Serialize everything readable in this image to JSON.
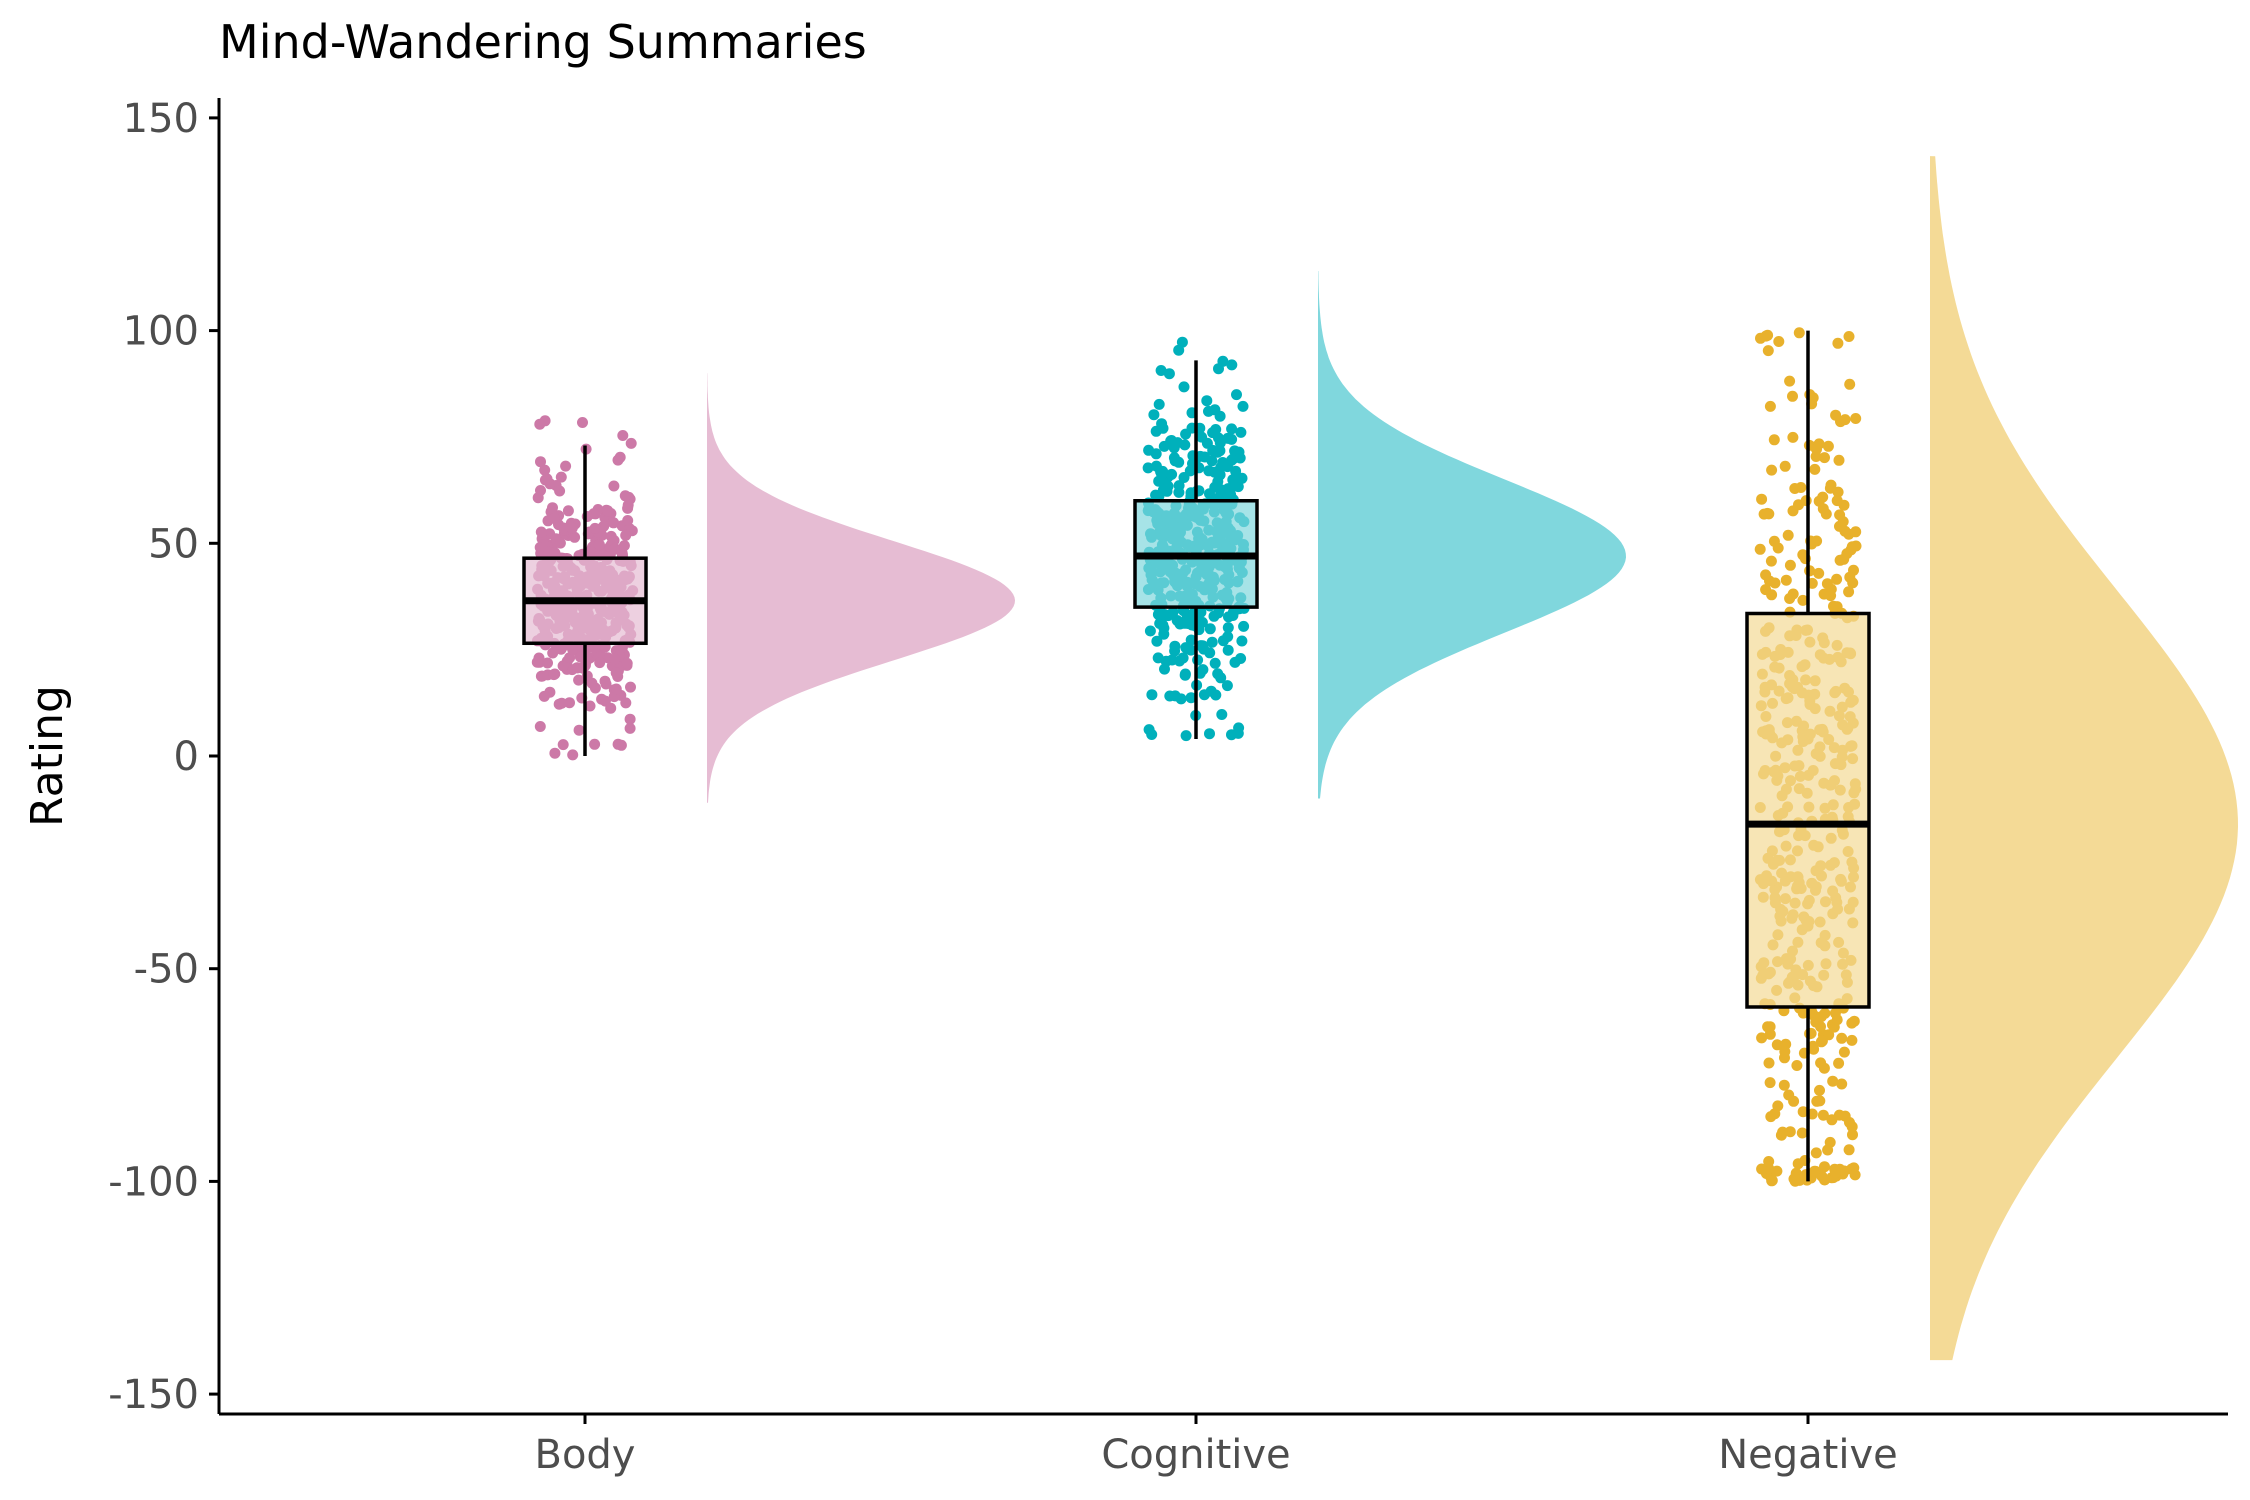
{
  "chart_data": {
    "type": "raincloud",
    "title": "Mind-Wandering Summaries",
    "xlabel": "",
    "ylabel": "Rating",
    "ylim": [
      -155,
      155
    ],
    "yticks": [
      150,
      100,
      50,
      0,
      -50,
      -100,
      -150
    ],
    "ytick_labels": [
      "150",
      "100",
      "50",
      "0",
      "-50",
      "-100",
      "-150"
    ],
    "grid": false,
    "legend": "none",
    "categories": [
      "Body",
      "Cognitive",
      "Negative"
    ],
    "series": [
      {
        "name": "Body",
        "color": "#cc79a7",
        "fill_color": "#e6bcd3",
        "box": {
          "whisker_low": 0,
          "q1": 26.5,
          "median": 36.5,
          "q3": 46.5,
          "whisker_high": 73
        },
        "points": {
          "n": 420,
          "min": 0,
          "max": 79,
          "mean": 36.5,
          "sd": 14
        },
        "density": {
          "mean": 36.5,
          "sd": 14,
          "min": -11,
          "max": 90
        }
      },
      {
        "name": "Cognitive",
        "color": "#00b0bb",
        "fill_color": "#80d7dd",
        "box": {
          "whisker_low": 4,
          "q1": 35,
          "median": 47,
          "q3": 60,
          "whisker_high": 93
        },
        "points": {
          "n": 420,
          "min": 4,
          "max": 100,
          "mean": 47,
          "sd": 18
        },
        "density": {
          "mean": 47,
          "sd": 18,
          "min": -10,
          "max": 114
        }
      },
      {
        "name": "Negative",
        "color": "#e8b12c",
        "fill_color": "#f4da96",
        "box": {
          "whisker_low": -100,
          "q1": -59,
          "median": -16,
          "q3": 33.5,
          "whisker_high": 100
        },
        "points": {
          "n": 470,
          "min": -100,
          "max": 100,
          "mean": -16,
          "sd": 55
        },
        "density": {
          "mean": -16,
          "sd": 55,
          "min": -142,
          "max": 141
        }
      }
    ]
  }
}
